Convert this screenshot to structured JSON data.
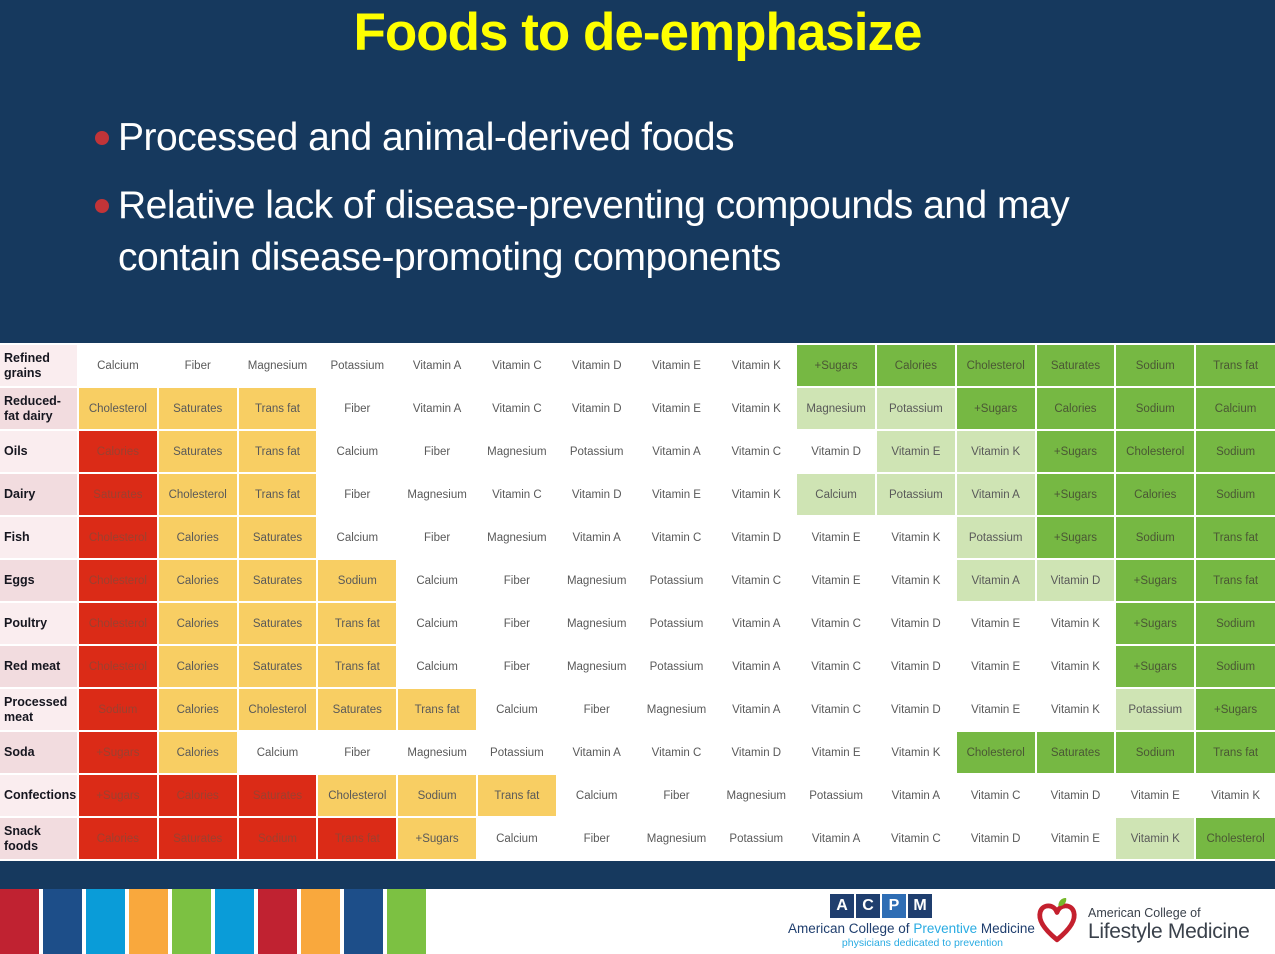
{
  "slide": {
    "title": "Foods to de-emphasize",
    "bullets": [
      "Processed and animal-derived foods",
      "Relative lack of disease-preventing compounds and may contain disease-promoting components"
    ]
  },
  "colors": {
    "slide_bg": "#16395E",
    "title_yellow": "#FFFF00",
    "bullet_red": "#C13438",
    "cell_red": "#DB2B17",
    "cell_orange": "#F8CE63",
    "cell_light_green": "#CFE4B4",
    "cell_green": "#76B843",
    "label_pink_light": "#FAEDEF",
    "label_pink_dark": "#F2DCDF",
    "label_text": "#16161F",
    "text_dark": "#595959",
    "text_on_red": "#9B4130",
    "text_on_green": "#4A5734",
    "acpm_navy": "#1F3E6E",
    "acpm_blue": "#2E6DB4",
    "acpm_lightblue": "#29ABE2",
    "aclm_text": "#3A414B",
    "apple_red": "#C4202E",
    "leaf_green": "#76B82A"
  },
  "table": {
    "color_legend": {
      "r": "red",
      "o": "orange",
      "w": "white",
      "lg": "light-green",
      "g": "green"
    },
    "rows": [
      {
        "label": "Refined grains",
        "cells": [
          {
            "t": "Calcium",
            "c": "w"
          },
          {
            "t": "Fiber",
            "c": "w"
          },
          {
            "t": "Magnesium",
            "c": "w"
          },
          {
            "t": "Potassium",
            "c": "w"
          },
          {
            "t": "Vitamin A",
            "c": "w"
          },
          {
            "t": "Vitamin C",
            "c": "w"
          },
          {
            "t": "Vitamin D",
            "c": "w"
          },
          {
            "t": "Vitamin E",
            "c": "w"
          },
          {
            "t": "Vitamin K",
            "c": "w"
          },
          {
            "t": "+Sugars",
            "c": "g"
          },
          {
            "t": "Calories",
            "c": "g"
          },
          {
            "t": "Cholesterol",
            "c": "g"
          },
          {
            "t": "Saturates",
            "c": "g"
          },
          {
            "t": "Sodium",
            "c": "g"
          },
          {
            "t": "Trans fat",
            "c": "g"
          }
        ]
      },
      {
        "label": "Reduced-fat dairy",
        "cells": [
          {
            "t": "Cholesterol",
            "c": "o"
          },
          {
            "t": "Saturates",
            "c": "o"
          },
          {
            "t": "Trans fat",
            "c": "o"
          },
          {
            "t": "Fiber",
            "c": "w"
          },
          {
            "t": "Vitamin A",
            "c": "w"
          },
          {
            "t": "Vitamin C",
            "c": "w"
          },
          {
            "t": "Vitamin D",
            "c": "w"
          },
          {
            "t": "Vitamin E",
            "c": "w"
          },
          {
            "t": "Vitamin K",
            "c": "w"
          },
          {
            "t": "Magnesium",
            "c": "lg"
          },
          {
            "t": "Potassium",
            "c": "lg"
          },
          {
            "t": "+Sugars",
            "c": "g"
          },
          {
            "t": "Calories",
            "c": "g"
          },
          {
            "t": "Sodium",
            "c": "g"
          },
          {
            "t": "Calcium",
            "c": "g"
          }
        ]
      },
      {
        "label": "Oils",
        "cells": [
          {
            "t": "Calories",
            "c": "r"
          },
          {
            "t": "Saturates",
            "c": "o"
          },
          {
            "t": "Trans fat",
            "c": "o"
          },
          {
            "t": "Calcium",
            "c": "w"
          },
          {
            "t": "Fiber",
            "c": "w"
          },
          {
            "t": "Magnesium",
            "c": "w"
          },
          {
            "t": "Potassium",
            "c": "w"
          },
          {
            "t": "Vitamin A",
            "c": "w"
          },
          {
            "t": "Vitamin C",
            "c": "w"
          },
          {
            "t": "Vitamin D",
            "c": "w"
          },
          {
            "t": "Vitamin E",
            "c": "lg"
          },
          {
            "t": "Vitamin K",
            "c": "lg"
          },
          {
            "t": "+Sugars",
            "c": "g"
          },
          {
            "t": "Cholesterol",
            "c": "g"
          },
          {
            "t": "Sodium",
            "c": "g"
          }
        ]
      },
      {
        "label": "Dairy",
        "cells": [
          {
            "t": "Saturates",
            "c": "r"
          },
          {
            "t": "Cholesterol",
            "c": "o"
          },
          {
            "t": "Trans fat",
            "c": "o"
          },
          {
            "t": "Fiber",
            "c": "w"
          },
          {
            "t": "Magnesium",
            "c": "w"
          },
          {
            "t": "Vitamin C",
            "c": "w"
          },
          {
            "t": "Vitamin D",
            "c": "w"
          },
          {
            "t": "Vitamin E",
            "c": "w"
          },
          {
            "t": "Vitamin K",
            "c": "w"
          },
          {
            "t": "Calcium",
            "c": "lg"
          },
          {
            "t": "Potassium",
            "c": "lg"
          },
          {
            "t": "Vitamin A",
            "c": "lg"
          },
          {
            "t": "+Sugars",
            "c": "g"
          },
          {
            "t": "Calories",
            "c": "g"
          },
          {
            "t": "Sodium",
            "c": "g"
          }
        ]
      },
      {
        "label": "Fish",
        "cells": [
          {
            "t": "Cholesterol",
            "c": "r"
          },
          {
            "t": "Calories",
            "c": "o"
          },
          {
            "t": "Saturates",
            "c": "o"
          },
          {
            "t": "Calcium",
            "c": "w"
          },
          {
            "t": "Fiber",
            "c": "w"
          },
          {
            "t": "Magnesium",
            "c": "w"
          },
          {
            "t": "Vitamin A",
            "c": "w"
          },
          {
            "t": "Vitamin C",
            "c": "w"
          },
          {
            "t": "Vitamin D",
            "c": "w"
          },
          {
            "t": "Vitamin E",
            "c": "w"
          },
          {
            "t": "Vitamin K",
            "c": "w"
          },
          {
            "t": "Potassium",
            "c": "lg"
          },
          {
            "t": "+Sugars",
            "c": "g"
          },
          {
            "t": "Sodium",
            "c": "g"
          },
          {
            "t": "Trans fat",
            "c": "g"
          }
        ]
      },
      {
        "label": "Eggs",
        "cells": [
          {
            "t": "Cholesterol",
            "c": "r"
          },
          {
            "t": "Calories",
            "c": "o"
          },
          {
            "t": "Saturates",
            "c": "o"
          },
          {
            "t": "Sodium",
            "c": "o"
          },
          {
            "t": "Calcium",
            "c": "w"
          },
          {
            "t": "Fiber",
            "c": "w"
          },
          {
            "t": "Magnesium",
            "c": "w"
          },
          {
            "t": "Potassium",
            "c": "w"
          },
          {
            "t": "Vitamin C",
            "c": "w"
          },
          {
            "t": "Vitamin E",
            "c": "w"
          },
          {
            "t": "Vitamin K",
            "c": "w"
          },
          {
            "t": "Vitamin A",
            "c": "lg"
          },
          {
            "t": "Vitamin D",
            "c": "lg"
          },
          {
            "t": "+Sugars",
            "c": "g"
          },
          {
            "t": "Trans fat",
            "c": "g"
          }
        ]
      },
      {
        "label": "Poultry",
        "cells": [
          {
            "t": "Cholesterol",
            "c": "r"
          },
          {
            "t": "Calories",
            "c": "o"
          },
          {
            "t": "Saturates",
            "c": "o"
          },
          {
            "t": "Trans fat",
            "c": "o"
          },
          {
            "t": "Calcium",
            "c": "w"
          },
          {
            "t": "Fiber",
            "c": "w"
          },
          {
            "t": "Magnesium",
            "c": "w"
          },
          {
            "t": "Potassium",
            "c": "w"
          },
          {
            "t": "Vitamin A",
            "c": "w"
          },
          {
            "t": "Vitamin C",
            "c": "w"
          },
          {
            "t": "Vitamin D",
            "c": "w"
          },
          {
            "t": "Vitamin E",
            "c": "w"
          },
          {
            "t": "Vitamin K",
            "c": "w"
          },
          {
            "t": "+Sugars",
            "c": "g"
          },
          {
            "t": "Sodium",
            "c": "g"
          }
        ]
      },
      {
        "label": "Red meat",
        "cells": [
          {
            "t": "Cholesterol",
            "c": "r"
          },
          {
            "t": "Calories",
            "c": "o"
          },
          {
            "t": "Saturates",
            "c": "o"
          },
          {
            "t": "Trans fat",
            "c": "o"
          },
          {
            "t": "Calcium",
            "c": "w"
          },
          {
            "t": "Fiber",
            "c": "w"
          },
          {
            "t": "Magnesium",
            "c": "w"
          },
          {
            "t": "Potassium",
            "c": "w"
          },
          {
            "t": "Vitamin A",
            "c": "w"
          },
          {
            "t": "Vitamin C",
            "c": "w"
          },
          {
            "t": "Vitamin D",
            "c": "w"
          },
          {
            "t": "Vitamin E",
            "c": "w"
          },
          {
            "t": "Vitamin K",
            "c": "w"
          },
          {
            "t": "+Sugars",
            "c": "g"
          },
          {
            "t": "Sodium",
            "c": "g"
          }
        ]
      },
      {
        "label": "Processed meat",
        "cells": [
          {
            "t": "Sodium",
            "c": "r"
          },
          {
            "t": "Calories",
            "c": "o"
          },
          {
            "t": "Cholesterol",
            "c": "o"
          },
          {
            "t": "Saturates",
            "c": "o"
          },
          {
            "t": "Trans fat",
            "c": "o"
          },
          {
            "t": "Calcium",
            "c": "w"
          },
          {
            "t": "Fiber",
            "c": "w"
          },
          {
            "t": "Magnesium",
            "c": "w"
          },
          {
            "t": "Vitamin A",
            "c": "w"
          },
          {
            "t": "Vitamin C",
            "c": "w"
          },
          {
            "t": "Vitamin D",
            "c": "w"
          },
          {
            "t": "Vitamin E",
            "c": "w"
          },
          {
            "t": "Vitamin K",
            "c": "w"
          },
          {
            "t": "Potassium",
            "c": "lg"
          },
          {
            "t": "+Sugars",
            "c": "g"
          }
        ]
      },
      {
        "label": "Soda",
        "cells": [
          {
            "t": "+Sugars",
            "c": "r"
          },
          {
            "t": "Calories",
            "c": "o"
          },
          {
            "t": "Calcium",
            "c": "w"
          },
          {
            "t": "Fiber",
            "c": "w"
          },
          {
            "t": "Magnesium",
            "c": "w"
          },
          {
            "t": "Potassium",
            "c": "w"
          },
          {
            "t": "Vitamin A",
            "c": "w"
          },
          {
            "t": "Vitamin C",
            "c": "w"
          },
          {
            "t": "Vitamin D",
            "c": "w"
          },
          {
            "t": "Vitamin E",
            "c": "w"
          },
          {
            "t": "Vitamin K",
            "c": "w"
          },
          {
            "t": "Cholesterol",
            "c": "g"
          },
          {
            "t": "Saturates",
            "c": "g"
          },
          {
            "t": "Sodium",
            "c": "g"
          },
          {
            "t": "Trans fat",
            "c": "g"
          }
        ]
      },
      {
        "label": "Confections",
        "cells": [
          {
            "t": "+Sugars",
            "c": "r"
          },
          {
            "t": "Calories",
            "c": "r"
          },
          {
            "t": "Saturates",
            "c": "r"
          },
          {
            "t": "Cholesterol",
            "c": "o"
          },
          {
            "t": "Sodium",
            "c": "o"
          },
          {
            "t": "Trans fat",
            "c": "o"
          },
          {
            "t": "Calcium",
            "c": "w"
          },
          {
            "t": "Fiber",
            "c": "w"
          },
          {
            "t": "Magnesium",
            "c": "w"
          },
          {
            "t": "Potassium",
            "c": "w"
          },
          {
            "t": "Vitamin A",
            "c": "w"
          },
          {
            "t": "Vitamin C",
            "c": "w"
          },
          {
            "t": "Vitamin D",
            "c": "w"
          },
          {
            "t": "Vitamin E",
            "c": "w"
          },
          {
            "t": "Vitamin K",
            "c": "w"
          }
        ]
      },
      {
        "label": "Snack foods",
        "cells": [
          {
            "t": "Calories",
            "c": "r"
          },
          {
            "t": "Saturates",
            "c": "r"
          },
          {
            "t": "Sodium",
            "c": "r"
          },
          {
            "t": "Trans fat",
            "c": "r"
          },
          {
            "t": "+Sugars",
            "c": "o"
          },
          {
            "t": "Calcium",
            "c": "w"
          },
          {
            "t": "Fiber",
            "c": "w"
          },
          {
            "t": "Magnesium",
            "c": "w"
          },
          {
            "t": "Potassium",
            "c": "w"
          },
          {
            "t": "Vitamin A",
            "c": "w"
          },
          {
            "t": "Vitamin C",
            "c": "w"
          },
          {
            "t": "Vitamin D",
            "c": "w"
          },
          {
            "t": "Vitamin E",
            "c": "w"
          },
          {
            "t": "Vitamin K",
            "c": "lg"
          },
          {
            "t": "Cholesterol",
            "c": "g"
          }
        ]
      }
    ]
  },
  "footer": {
    "squares": [
      "red",
      "navy",
      "lightblue",
      "orange",
      "green",
      "lightblue",
      "red",
      "orange",
      "navy",
      "green"
    ],
    "square_palette": {
      "red": "#C02231",
      "navy": "#1D4E89",
      "lightblue": "#0A9CD8",
      "orange": "#F9A83D",
      "green": "#7CC142"
    },
    "acpm": {
      "letters": [
        {
          "ch": "A",
          "bg": "#1F3E6E"
        },
        {
          "ch": "C",
          "bg": "#1F3E6E"
        },
        {
          "ch": "P",
          "bg": "#2E6DB4"
        },
        {
          "ch": "M",
          "bg": "#1F3E6E"
        }
      ],
      "line_navy1": "American College of ",
      "line_blue": "Preventive",
      "line_navy2": " Medicine",
      "tagline": "physicians dedicated to prevention"
    },
    "aclm": {
      "line1": "American College of",
      "line2": "Lifestyle Medicine"
    }
  }
}
